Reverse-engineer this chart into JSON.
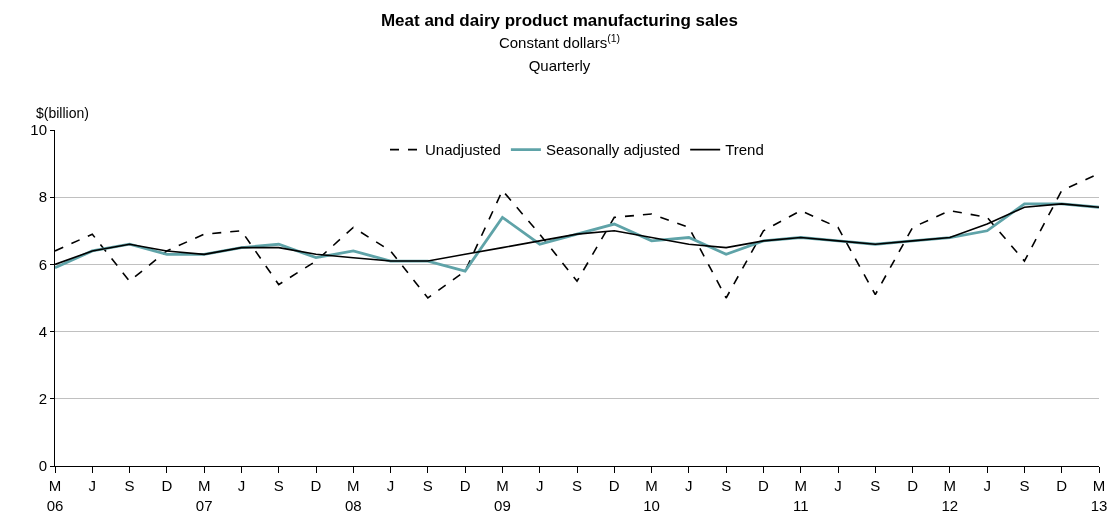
{
  "chart_data": {
    "type": "line",
    "title": "Meat and dairy product manufacturing sales",
    "subtitle": "Constant dollars$^{(1)}$\nQuarterly",
    "ylabel": "$(billion)",
    "categories": [
      "M\n06",
      "J",
      "S",
      "D",
      "M\n07",
      "J",
      "S",
      "D",
      "M\n08",
      "J",
      "S",
      "D",
      "M\n09",
      "J",
      "S",
      "D",
      "M\n10",
      "J",
      "S",
      "D",
      "M\n11",
      "J",
      "S",
      "D",
      "M\n12",
      "J",
      "S",
      "D",
      "M\n13"
    ],
    "series": [
      {
        "name": "Unadjusted",
        "color": "#000000",
        "line_style": "dashed",
        "values": [
          6.4,
          6.9,
          5.5,
          6.4,
          6.9,
          7.0,
          5.4,
          6.1,
          7.1,
          6.4,
          5.0,
          5.8,
          8.2,
          6.9,
          5.5,
          7.4,
          7.5,
          7.1,
          5.0,
          7.0,
          7.6,
          7.1,
          5.1,
          7.1,
          7.6,
          7.4,
          6.1,
          8.2,
          8.7
        ]
      },
      {
        "name": "Seasonally adjusted",
        "color": "#5fa3a8",
        "line_style": "solid",
        "values": [
          5.9,
          6.4,
          6.6,
          6.3,
          6.3,
          6.5,
          6.6,
          6.2,
          6.4,
          6.1,
          6.1,
          5.8,
          7.4,
          6.6,
          6.9,
          7.2,
          6.7,
          6.8,
          6.3,
          6.7,
          6.8,
          6.7,
          6.6,
          6.7,
          6.8,
          7.0,
          7.8,
          7.8,
          7.7
        ]
      },
      {
        "name": "Trend",
        "color": "#000000",
        "line_style": "solid",
        "values": [
          6.0,
          6.4,
          6.6,
          6.4,
          6.3,
          6.5,
          6.5,
          6.3,
          6.2,
          6.1,
          6.1,
          6.3,
          6.5,
          6.7,
          6.9,
          7.0,
          6.8,
          6.6,
          6.5,
          6.7,
          6.8,
          6.7,
          6.6,
          6.7,
          6.8,
          7.2,
          7.7,
          7.8,
          7.7
        ]
      }
    ],
    "ylim": [
      0,
      10
    ],
    "yticks": [
      0,
      2,
      4,
      6,
      8,
      10
    ],
    "grid": "y",
    "legend": "top",
    "marker": "none"
  }
}
